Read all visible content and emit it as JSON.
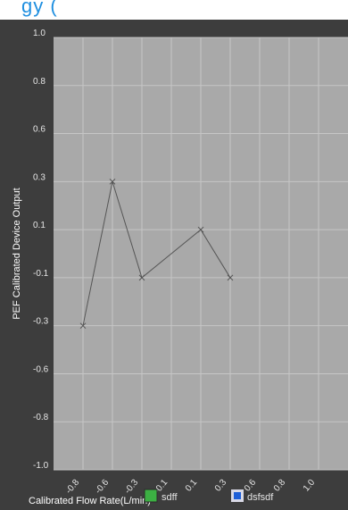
{
  "header": {
    "title_fragment": "gy ("
  },
  "chart_data": {
    "type": "line",
    "title": "",
    "xlabel": "Calibrated Flow Rate(L/min)",
    "ylabel": "PEF Calibrated Device Output",
    "x_ticks": [
      "-0.8",
      "-0.6",
      "-0.3",
      "-0.1",
      "0.1",
      "0.3",
      "0.6",
      "0.8",
      "1.0"
    ],
    "y_ticks": [
      "1.0",
      "0.8",
      "0.6",
      "0.3",
      "0.1",
      "-0.1",
      "-0.3",
      "-0.6",
      "-0.8",
      "-1.0"
    ],
    "xlim": [
      -1.0,
      1.0
    ],
    "ylim": [
      -1.0,
      1.0
    ],
    "grid": true,
    "legend_position": "bottom",
    "series": [
      {
        "name": "sdff",
        "color": "#555555",
        "marker": "x",
        "points": [
          {
            "x": -0.8,
            "y": -0.3
          },
          {
            "x": -0.6,
            "y": 0.3
          },
          {
            "x": -0.3,
            "y": -0.1
          },
          {
            "x": 0.1,
            "y": 0.1
          },
          {
            "x": 0.3,
            "y": -0.1
          }
        ]
      }
    ],
    "legend": [
      {
        "label": "sdff",
        "swatch_color": "#3cb043",
        "icon": "green-square-icon"
      },
      {
        "label": "dsfsdf",
        "swatch_color": "#1e5fd8",
        "icon": "blue-square-icon"
      }
    ],
    "colors": {
      "plot_bg": "#a9a9a9",
      "frame_bg": "#3d3d3d",
      "grid": "#c6c6c6"
    }
  }
}
